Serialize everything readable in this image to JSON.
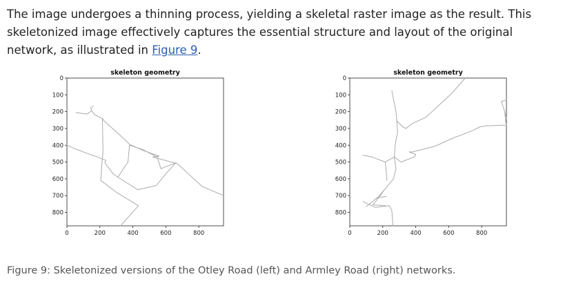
{
  "paragraph": {
    "text": "The image undergoes a thinning process, yielding a skeletal raster image as the result. This skeletonized image effectively captures the essential structure and layout of the original network, as illustrated in ",
    "link": "Figure 9",
    "after": "."
  },
  "caption": "Figure 9: Skeletonized versions of the Otley Road (left) and Armley Road (right) networks.",
  "chart_data": [
    {
      "type": "image",
      "title": "skeleton geometry",
      "xticks": [
        0,
        200,
        400,
        600,
        800
      ],
      "yticks": [
        0,
        100,
        200,
        300,
        400,
        500,
        600,
        700,
        800
      ],
      "xlim": [
        0,
        950
      ],
      "ylim": [
        880,
        0
      ],
      "paths": [
        [
          [
            55,
            205
          ],
          [
            120,
            215
          ],
          [
            150,
            195
          ],
          [
            168,
            218
          ],
          [
            213,
            240
          ]
        ],
        [
          [
            150,
            195
          ],
          [
            145,
            175
          ],
          [
            160,
            168
          ]
        ],
        [
          [
            0,
            400
          ],
          [
            60,
            425
          ],
          [
            155,
            460
          ],
          [
            180,
            468
          ],
          [
            236,
            490
          ]
        ],
        [
          [
            215,
            240
          ],
          [
            225,
            255
          ],
          [
            350,
            365
          ],
          [
            380,
            395
          ],
          [
            460,
            430
          ],
          [
            560,
            465
          ],
          [
            520,
            470
          ],
          [
            670,
            510
          ],
          [
            820,
            645
          ],
          [
            950,
            700
          ]
        ],
        [
          [
            215,
            240
          ],
          [
            219,
            440
          ],
          [
            213,
            500
          ],
          [
            205,
            610
          ],
          [
            300,
            680
          ],
          [
            434,
            760
          ]
        ],
        [
          [
            236,
            490
          ],
          [
            230,
            505
          ],
          [
            280,
            570
          ],
          [
            309,
            590
          ]
        ],
        [
          [
            309,
            590
          ],
          [
            370,
            500
          ],
          [
            380,
            400
          ],
          [
            459,
            425
          ]
        ],
        [
          [
            459,
            425
          ],
          [
            547,
            470
          ],
          [
            570,
            540
          ],
          [
            660,
            505
          ]
        ],
        [
          [
            309,
            590
          ],
          [
            430,
            665
          ],
          [
            542,
            640
          ],
          [
            600,
            570
          ],
          [
            660,
            505
          ]
        ],
        [
          [
            434,
            760
          ],
          [
            325,
            880
          ]
        ]
      ]
    },
    {
      "type": "image",
      "title": "skeleton geometry",
      "xticks": [
        0,
        200,
        400,
        600,
        800
      ],
      "yticks": [
        0,
        100,
        200,
        300,
        400,
        500,
        600,
        700,
        800
      ],
      "xlim": [
        0,
        950
      ],
      "ylim": [
        880,
        0
      ],
      "paths": [
        [
          [
            255,
            75
          ],
          [
            265,
            125
          ],
          [
            280,
            200
          ],
          [
            285,
            255
          ]
        ],
        [
          [
            285,
            255
          ],
          [
            320,
            290
          ],
          [
            340,
            300
          ],
          [
            380,
            270
          ],
          [
            460,
            235
          ],
          [
            620,
            90
          ],
          [
            700,
            0
          ]
        ],
        [
          [
            285,
            255
          ],
          [
            290,
            320
          ],
          [
            275,
            400
          ],
          [
            270,
            470
          ]
        ],
        [
          [
            270,
            470
          ],
          [
            310,
            500
          ],
          [
            390,
            470
          ],
          [
            400,
            455
          ],
          [
            360,
            440
          ],
          [
            380,
            440
          ],
          [
            520,
            405
          ],
          [
            620,
            360
          ],
          [
            700,
            330
          ],
          [
            750,
            310
          ],
          [
            790,
            290
          ],
          [
            830,
            285
          ],
          [
            950,
            280
          ]
        ],
        [
          [
            920,
            140
          ],
          [
            950,
            130
          ]
        ],
        [
          [
            920,
            140
          ],
          [
            940,
            200
          ],
          [
            950,
            240
          ]
        ],
        [
          [
            940,
            200
          ],
          [
            945,
            260
          ],
          [
            950,
            280
          ]
        ],
        [
          [
            80,
            460
          ],
          [
            135,
            470
          ],
          [
            160,
            480
          ],
          [
            215,
            500
          ],
          [
            270,
            470
          ]
        ],
        [
          [
            215,
            500
          ],
          [
            221,
            555
          ],
          [
            225,
            610
          ]
        ],
        [
          [
            270,
            470
          ],
          [
            280,
            540
          ],
          [
            265,
            600
          ],
          [
            210,
            665
          ],
          [
            170,
            710
          ],
          [
            100,
            765
          ]
        ],
        [
          [
            210,
            665
          ],
          [
            185,
            700
          ],
          [
            140,
            755
          ]
        ],
        [
          [
            140,
            755
          ],
          [
            215,
            760
          ]
        ],
        [
          [
            160,
            715
          ],
          [
            220,
            705
          ]
        ],
        [
          [
            80,
            735
          ],
          [
            120,
            755
          ],
          [
            155,
            770
          ],
          [
            240,
            760
          ],
          [
            255,
            790
          ]
        ],
        [
          [
            255,
            790
          ],
          [
            262,
            880
          ]
        ]
      ]
    }
  ]
}
